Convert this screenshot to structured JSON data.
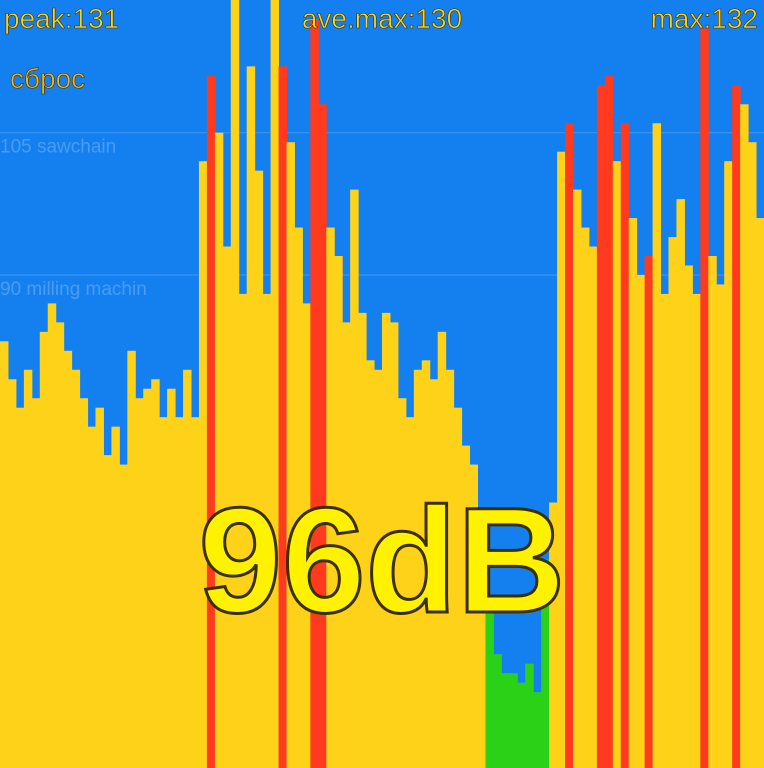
{
  "header": {
    "peak": "peak:131",
    "ave_max": "ave.max:130",
    "max": "max:132",
    "reset": "сброс"
  },
  "reading": "96dB",
  "chart_data": {
    "type": "bar",
    "values": [
      83,
      79,
      76,
      80,
      77,
      84,
      87,
      85,
      82,
      80,
      77,
      74,
      76,
      71,
      74,
      70,
      82,
      77,
      78,
      79,
      75,
      78,
      75,
      80,
      75,
      102,
      111,
      105,
      93,
      120,
      88,
      112,
      101,
      88,
      120,
      112,
      104,
      95,
      87,
      117,
      108,
      95,
      92,
      85,
      99,
      86,
      81,
      80,
      86,
      85,
      77,
      75,
      80,
      81,
      79,
      84,
      80,
      76,
      72,
      70,
      62,
      55,
      50,
      48,
      48,
      47,
      49,
      46,
      60,
      66,
      103,
      106,
      99,
      95,
      93,
      110,
      111,
      102,
      106,
      96,
      90,
      92,
      106,
      88,
      94,
      98,
      91,
      88,
      116,
      92,
      89,
      102,
      110,
      108,
      104,
      96
    ],
    "colors": [
      "#ffd21a",
      "#ffd21a",
      "#ffd21a",
      "#ffd21a",
      "#ffd21a",
      "#ffd21a",
      "#ffd21a",
      "#ffd21a",
      "#ffd21a",
      "#ffd21a",
      "#ffd21a",
      "#ffd21a",
      "#ffd21a",
      "#ffd21a",
      "#ffd21a",
      "#ffd21a",
      "#ffd21a",
      "#ffd21a",
      "#ffd21a",
      "#ffd21a",
      "#ffd21a",
      "#ffd21a",
      "#ffd21a",
      "#ffd21a",
      "#ffd21a",
      "#ffd21a",
      "#ff3a1f",
      "#ffd21a",
      "#ffd21a",
      "#ffd21a",
      "#ffd21a",
      "#ffd21a",
      "#ffd21a",
      "#ffd21a",
      "#ffd21a",
      "#ff3a1f",
      "#ffd21a",
      "#ffd21a",
      "#ffd21a",
      "#ff3a1f",
      "#ff3a1f",
      "#ffd21a",
      "#ffd21a",
      "#ffd21a",
      "#ffd21a",
      "#ffd21a",
      "#ffd21a",
      "#ffd21a",
      "#ffd21a",
      "#ffd21a",
      "#ffd21a",
      "#ffd21a",
      "#ffd21a",
      "#ffd21a",
      "#ffd21a",
      "#ffd21a",
      "#ffd21a",
      "#ffd21a",
      "#ffd21a",
      "#ffd21a",
      "#ffd21a",
      "#2bd117",
      "#2bd117",
      "#2bd117",
      "#2bd117",
      "#2bd117",
      "#2bd117",
      "#2bd117",
      "#2bd117",
      "#ffd21a",
      "#ffd21a",
      "#ff3a1f",
      "#ffd21a",
      "#ffd21a",
      "#ffd21a",
      "#ff3a1f",
      "#ff3a1f",
      "#ffd21a",
      "#ff3a1f",
      "#ffd21a",
      "#ffd21a",
      "#ff3a1f",
      "#ffd21a",
      "#ffd21a",
      "#ffd21a",
      "#ffd21a",
      "#ffd21a",
      "#ffd21a",
      "#ff3a1f",
      "#ffd21a",
      "#ffd21a",
      "#ffd21a",
      "#ff3a1f",
      "#ffd21a",
      "#ffd21a",
      "#ffd21a"
    ],
    "ylim": [
      38,
      119
    ],
    "reference_lines": [
      {
        "value": 105,
        "label": "105 sawchain"
      },
      {
        "value": 90,
        "label": "90 milling machin"
      }
    ]
  }
}
